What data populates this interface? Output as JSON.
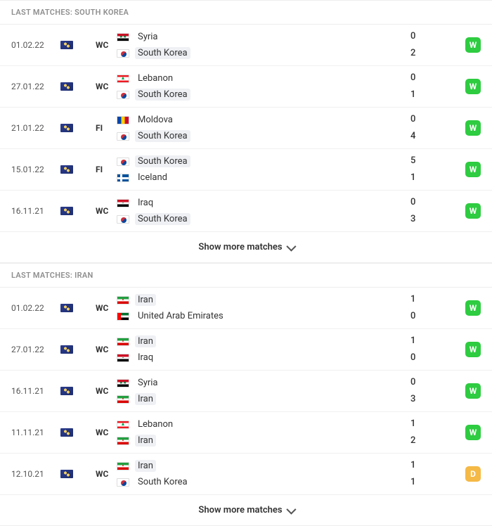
{
  "show_more_label": "Show more matches",
  "sections": [
    {
      "header": "LAST MATCHES: SOUTH KOREA",
      "highlight_team": "South Korea",
      "matches": [
        {
          "date": "01.02.22",
          "comp": "WC",
          "home": "Syria",
          "home_flag": "syria",
          "away": "South Korea",
          "away_flag": "southkorea",
          "home_score": 0,
          "away_score": 2,
          "result": "W"
        },
        {
          "date": "27.01.22",
          "comp": "WC",
          "home": "Lebanon",
          "home_flag": "lebanon",
          "away": "South Korea",
          "away_flag": "southkorea",
          "home_score": 0,
          "away_score": 1,
          "result": "W"
        },
        {
          "date": "21.01.22",
          "comp": "FI",
          "home": "Moldova",
          "home_flag": "moldova",
          "away": "South Korea",
          "away_flag": "southkorea",
          "home_score": 0,
          "away_score": 4,
          "result": "W"
        },
        {
          "date": "15.01.22",
          "comp": "FI",
          "home": "South Korea",
          "home_flag": "southkorea",
          "away": "Iceland",
          "away_flag": "iceland",
          "home_score": 5,
          "away_score": 1,
          "result": "W"
        },
        {
          "date": "16.11.21",
          "comp": "WC",
          "home": "Iraq",
          "home_flag": "iraq",
          "away": "South Korea",
          "away_flag": "southkorea",
          "home_score": 0,
          "away_score": 3,
          "result": "W"
        }
      ]
    },
    {
      "header": "LAST MATCHES: IRAN",
      "highlight_team": "Iran",
      "matches": [
        {
          "date": "01.02.22",
          "comp": "WC",
          "home": "Iran",
          "home_flag": "iran",
          "away": "United Arab Emirates",
          "away_flag": "uae",
          "home_score": 1,
          "away_score": 0,
          "result": "W"
        },
        {
          "date": "27.01.22",
          "comp": "WC",
          "home": "Iran",
          "home_flag": "iran",
          "away": "Iraq",
          "away_flag": "iraq",
          "home_score": 1,
          "away_score": 0,
          "result": "W"
        },
        {
          "date": "16.11.21",
          "comp": "WC",
          "home": "Syria",
          "home_flag": "syria",
          "away": "Iran",
          "away_flag": "iran",
          "home_score": 0,
          "away_score": 3,
          "result": "W"
        },
        {
          "date": "11.11.21",
          "comp": "WC",
          "home": "Lebanon",
          "home_flag": "lebanon",
          "away": "Iran",
          "away_flag": "iran",
          "home_score": 1,
          "away_score": 2,
          "result": "W"
        },
        {
          "date": "12.10.21",
          "comp": "WC",
          "home": "Iran",
          "home_flag": "iran",
          "away": "South Korea",
          "away_flag": "southkorea",
          "home_score": 1,
          "away_score": 1,
          "result": "D"
        }
      ]
    }
  ]
}
